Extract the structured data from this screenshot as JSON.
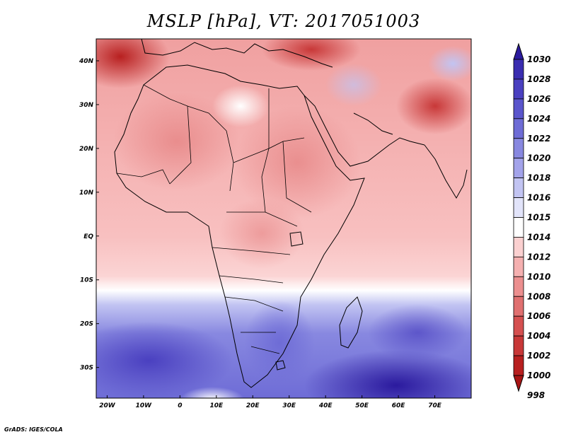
{
  "title": "MSLP [hPa], VT: 2017051003",
  "credit": "GrADS: IGES/COLA",
  "map": {
    "lon_range": [
      -23,
      80
    ],
    "lat_range": [
      -37,
      45
    ],
    "lat_ticks": [
      {
        "value": 40,
        "label": "40N"
      },
      {
        "value": 30,
        "label": "30N"
      },
      {
        "value": 20,
        "label": "20N"
      },
      {
        "value": 10,
        "label": "10N"
      },
      {
        "value": 0,
        "label": "EQ"
      },
      {
        "value": -10,
        "label": "10S"
      },
      {
        "value": -20,
        "label": "20S"
      },
      {
        "value": -30,
        "label": "30S"
      }
    ],
    "lon_ticks": [
      {
        "value": -20,
        "label": "20W"
      },
      {
        "value": -10,
        "label": "10W"
      },
      {
        "value": 0,
        "label": "0"
      },
      {
        "value": 10,
        "label": "10E"
      },
      {
        "value": 20,
        "label": "20E"
      },
      {
        "value": 30,
        "label": "30E"
      },
      {
        "value": 40,
        "label": "40E"
      },
      {
        "value": 50,
        "label": "50E"
      },
      {
        "value": 60,
        "label": "60E"
      },
      {
        "value": 70,
        "label": "70E"
      }
    ]
  },
  "colorbar": {
    "levels": [
      "1030",
      "1028",
      "1026",
      "1024",
      "1022",
      "1020",
      "1018",
      "1016",
      "1015",
      "1014",
      "1012",
      "1010",
      "1008",
      "1006",
      "1004",
      "1002",
      "1000",
      "998"
    ],
    "colors": [
      "#2b1a9e",
      "#3a2db0",
      "#4a40c0",
      "#5a55cc",
      "#6e6cd6",
      "#8888e0",
      "#a3a3ea",
      "#c2c4f2",
      "#e2e4fa",
      "#ffffff",
      "#fbd0d0",
      "#f5b0b0",
      "#ec8f8f",
      "#e07070",
      "#d55050",
      "#c83838",
      "#b82020",
      "#a81515"
    ]
  }
}
